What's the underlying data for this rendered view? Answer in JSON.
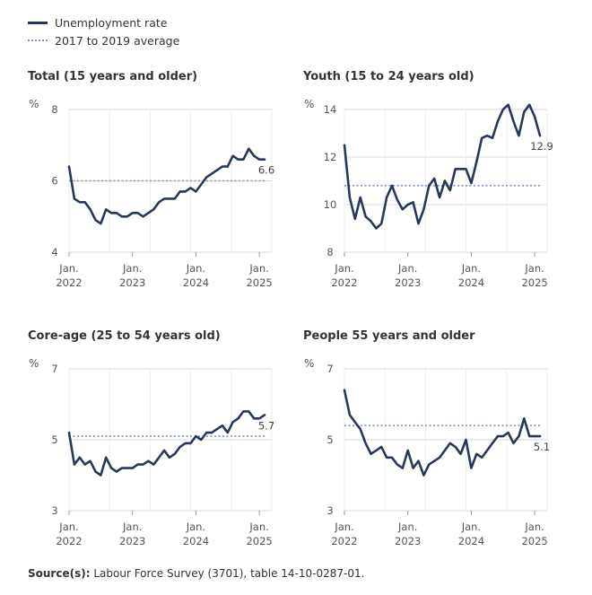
{
  "legend": {
    "series_label": "Unemployment rate",
    "average_label": "2017 to 2019 average"
  },
  "colors": {
    "line": "#263958",
    "average": "#7e92bd",
    "grid": "#d9d9d9",
    "tick_text": "#555555"
  },
  "source": {
    "label": "Source(s):",
    "text": "Labour Force Survey (3701), table 14-10-0287-01."
  },
  "chart_data": [
    {
      "type": "line",
      "title": "Total (15 years and older)",
      "ylabel": "%",
      "yticks": [
        4,
        6,
        8
      ],
      "ylim": [
        4,
        8
      ],
      "xticks": [
        {
          "month": 0,
          "l1": "Jan.",
          "l2": "2022"
        },
        {
          "month": 12,
          "l1": "Jan.",
          "l2": "2023"
        },
        {
          "month": 24,
          "l1": "Jan.",
          "l2": "2024"
        },
        {
          "month": 36,
          "l1": "Jan.",
          "l2": "2025"
        }
      ],
      "average": 6.0,
      "end_label": "6.6",
      "values": [
        6.4,
        5.5,
        5.4,
        5.4,
        5.2,
        4.9,
        4.8,
        5.2,
        5.1,
        5.1,
        5.0,
        5.0,
        5.1,
        5.1,
        5.0,
        5.1,
        5.2,
        5.4,
        5.5,
        5.5,
        5.5,
        5.7,
        5.7,
        5.8,
        5.7,
        5.9,
        6.1,
        6.2,
        6.3,
        6.4,
        6.4,
        6.7,
        6.6,
        6.6,
        6.9,
        6.7,
        6.6,
        6.6
      ]
    },
    {
      "type": "line",
      "title": "Youth (15 to 24 years old)",
      "ylabel": "%",
      "yticks": [
        8,
        10,
        12,
        14
      ],
      "ylim": [
        8,
        14
      ],
      "xticks": [
        {
          "month": 0,
          "l1": "Jan.",
          "l2": "2022"
        },
        {
          "month": 12,
          "l1": "Jan.",
          "l2": "2023"
        },
        {
          "month": 24,
          "l1": "Jan.",
          "l2": "2024"
        },
        {
          "month": 36,
          "l1": "Jan.",
          "l2": "2025"
        }
      ],
      "average": 10.8,
      "end_label": "12.9",
      "values": [
        12.5,
        10.3,
        9.4,
        10.3,
        9.5,
        9.3,
        9.0,
        9.2,
        10.3,
        10.8,
        10.2,
        9.8,
        10.0,
        10.1,
        9.2,
        9.8,
        10.8,
        11.1,
        10.3,
        11.0,
        10.6,
        11.5,
        11.5,
        11.5,
        10.9,
        11.8,
        12.8,
        12.9,
        12.8,
        13.5,
        14.0,
        14.2,
        13.5,
        12.9,
        13.9,
        14.2,
        13.7,
        12.9
      ]
    },
    {
      "type": "line",
      "title": "Core-age (25 to 54 years old)",
      "ylabel": "%",
      "yticks": [
        3,
        5,
        7
      ],
      "ylim": [
        3,
        7
      ],
      "xticks": [
        {
          "month": 0,
          "l1": "Jan.",
          "l2": "2022"
        },
        {
          "month": 12,
          "l1": "Jan.",
          "l2": "2023"
        },
        {
          "month": 24,
          "l1": "Jan.",
          "l2": "2024"
        },
        {
          "month": 36,
          "l1": "Jan.",
          "l2": "2025"
        }
      ],
      "average": 5.1,
      "end_label": "5.7",
      "values": [
        5.2,
        4.3,
        4.5,
        4.3,
        4.4,
        4.1,
        4.0,
        4.5,
        4.2,
        4.1,
        4.2,
        4.2,
        4.2,
        4.3,
        4.3,
        4.4,
        4.3,
        4.5,
        4.7,
        4.5,
        4.6,
        4.8,
        4.9,
        4.9,
        5.1,
        5.0,
        5.2,
        5.2,
        5.3,
        5.4,
        5.2,
        5.5,
        5.6,
        5.8,
        5.8,
        5.6,
        5.6,
        5.7
      ]
    },
    {
      "type": "line",
      "title": "People 55 years and older",
      "ylabel": "%",
      "yticks": [
        3,
        5,
        7
      ],
      "ylim": [
        3,
        7
      ],
      "xticks": [
        {
          "month": 0,
          "l1": "Jan.",
          "l2": "2022"
        },
        {
          "month": 12,
          "l1": "Jan.",
          "l2": "2023"
        },
        {
          "month": 24,
          "l1": "Jan.",
          "l2": "2024"
        },
        {
          "month": 36,
          "l1": "Jan.",
          "l2": "2025"
        }
      ],
      "average": 5.4,
      "end_label": "5.1",
      "values": [
        6.4,
        5.7,
        5.5,
        5.3,
        4.9,
        4.6,
        4.7,
        4.8,
        4.5,
        4.5,
        4.3,
        4.2,
        4.7,
        4.2,
        4.4,
        4.0,
        4.3,
        4.4,
        4.5,
        4.7,
        4.9,
        4.8,
        4.6,
        5.0,
        4.2,
        4.6,
        4.5,
        4.7,
        4.9,
        5.1,
        5.1,
        5.2,
        4.9,
        5.1,
        5.6,
        5.1,
        5.1,
        5.1
      ]
    }
  ]
}
